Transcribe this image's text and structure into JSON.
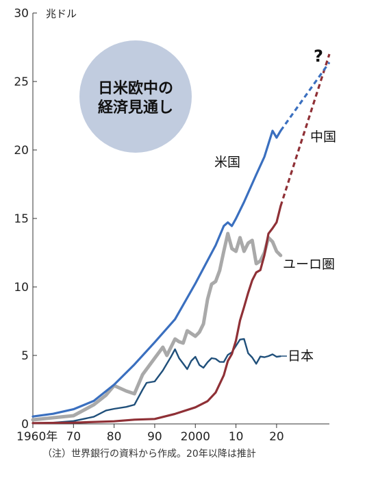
{
  "chart_data": {
    "type": "line",
    "title": "日米欧中の経済見通し",
    "y_unit": "兆ドル",
    "note": "（注）世界銀行の資料から作成。20年以降は推計",
    "xlim": [
      1960,
      2033
    ],
    "ylim": [
      0,
      30
    ],
    "x_ticks": [
      {
        "value": 1960,
        "label": "1960年"
      },
      {
        "value": 1970,
        "label": "70"
      },
      {
        "value": 1980,
        "label": "80"
      },
      {
        "value": 1990,
        "label": "90"
      },
      {
        "value": 2000,
        "label": "2000"
      },
      {
        "value": 2010,
        "label": "10"
      },
      {
        "value": 2020,
        "label": "20"
      }
    ],
    "y_ticks": [
      0,
      5,
      10,
      15,
      20,
      25,
      30
    ],
    "projection_marker": "?",
    "series": [
      {
        "name": "米国",
        "color": "#3a6fbf",
        "points": [
          [
            1960,
            0.54
          ],
          [
            1965,
            0.74
          ],
          [
            1970,
            1.07
          ],
          [
            1975,
            1.68
          ],
          [
            1980,
            2.86
          ],
          [
            1985,
            4.34
          ],
          [
            1990,
            5.96
          ],
          [
            1995,
            7.64
          ],
          [
            2000,
            10.25
          ],
          [
            2005,
            13.04
          ],
          [
            2007,
            14.45
          ],
          [
            2008,
            14.71
          ],
          [
            2009,
            14.45
          ],
          [
            2010,
            14.99
          ],
          [
            2012,
            16.2
          ],
          [
            2015,
            18.2
          ],
          [
            2017,
            19.5
          ],
          [
            2019,
            21.4
          ],
          [
            2020,
            20.9
          ],
          [
            2021,
            21.4
          ]
        ],
        "projection": [
          [
            2021,
            21.4
          ],
          [
            2033,
            26.4
          ]
        ]
      },
      {
        "name": "中国",
        "color": "#8f3036",
        "points": [
          [
            1960,
            0.06
          ],
          [
            1970,
            0.09
          ],
          [
            1980,
            0.19
          ],
          [
            1985,
            0.31
          ],
          [
            1990,
            0.36
          ],
          [
            1995,
            0.73
          ],
          [
            2000,
            1.21
          ],
          [
            2003,
            1.66
          ],
          [
            2005,
            2.29
          ],
          [
            2007,
            3.55
          ],
          [
            2008,
            4.59
          ],
          [
            2009,
            5.1
          ],
          [
            2010,
            6.09
          ],
          [
            2011,
            7.55
          ],
          [
            2012,
            8.53
          ],
          [
            2013,
            9.57
          ],
          [
            2014,
            10.48
          ],
          [
            2015,
            11.06
          ],
          [
            2016,
            11.23
          ],
          [
            2017,
            12.31
          ],
          [
            2018,
            13.89
          ],
          [
            2019,
            14.28
          ],
          [
            2020,
            14.72
          ],
          [
            2021,
            15.9
          ]
        ],
        "projection": [
          [
            2021,
            15.9
          ],
          [
            2033,
            27.0
          ]
        ]
      },
      {
        "name": "ユーロ圏",
        "color": "#a9a9a9",
        "points": [
          [
            1960,
            0.3
          ],
          [
            1970,
            0.6
          ],
          [
            1975,
            1.4
          ],
          [
            1978,
            2.1
          ],
          [
            1980,
            2.8
          ],
          [
            1983,
            2.4
          ],
          [
            1985,
            2.2
          ],
          [
            1987,
            3.6
          ],
          [
            1990,
            4.8
          ],
          [
            1992,
            5.6
          ],
          [
            1993,
            5.0
          ],
          [
            1995,
            6.2
          ],
          [
            1996,
            6.0
          ],
          [
            1997,
            5.9
          ],
          [
            1998,
            6.8
          ],
          [
            1999,
            6.6
          ],
          [
            2000,
            6.4
          ],
          [
            2001,
            6.7
          ],
          [
            2002,
            7.3
          ],
          [
            2003,
            9.1
          ],
          [
            2004,
            10.2
          ],
          [
            2005,
            10.4
          ],
          [
            2006,
            11.2
          ],
          [
            2007,
            12.6
          ],
          [
            2008,
            13.9
          ],
          [
            2009,
            12.8
          ],
          [
            2010,
            12.6
          ],
          [
            2011,
            13.6
          ],
          [
            2012,
            12.6
          ],
          [
            2013,
            13.2
          ],
          [
            2014,
            13.4
          ],
          [
            2015,
            11.7
          ],
          [
            2016,
            11.9
          ],
          [
            2017,
            12.5
          ],
          [
            2018,
            13.6
          ],
          [
            2019,
            13.3
          ],
          [
            2020,
            12.6
          ],
          [
            2021,
            12.3
          ]
        ]
      },
      {
        "name": "日本",
        "color": "#1f4f7a",
        "points": [
          [
            1960,
            0.04
          ],
          [
            1965,
            0.09
          ],
          [
            1970,
            0.21
          ],
          [
            1975,
            0.52
          ],
          [
            1978,
            0.98
          ],
          [
            1980,
            1.1
          ],
          [
            1983,
            1.24
          ],
          [
            1985,
            1.4
          ],
          [
            1987,
            2.5
          ],
          [
            1988,
            3.0
          ],
          [
            1990,
            3.1
          ],
          [
            1992,
            3.9
          ],
          [
            1993,
            4.4
          ],
          [
            1994,
            4.9
          ],
          [
            1995,
            5.45
          ],
          [
            1996,
            4.8
          ],
          [
            1997,
            4.4
          ],
          [
            1998,
            4.0
          ],
          [
            1999,
            4.6
          ],
          [
            2000,
            4.9
          ],
          [
            2001,
            4.3
          ],
          [
            2002,
            4.1
          ],
          [
            2003,
            4.5
          ],
          [
            2004,
            4.8
          ],
          [
            2005,
            4.75
          ],
          [
            2006,
            4.53
          ],
          [
            2007,
            4.52
          ],
          [
            2008,
            5.04
          ],
          [
            2009,
            5.23
          ],
          [
            2010,
            5.7
          ],
          [
            2011,
            6.16
          ],
          [
            2012,
            6.2
          ],
          [
            2013,
            5.16
          ],
          [
            2014,
            4.85
          ],
          [
            2015,
            4.39
          ],
          [
            2016,
            4.92
          ],
          [
            2017,
            4.87
          ],
          [
            2018,
            4.95
          ],
          [
            2019,
            5.08
          ],
          [
            2020,
            4.9
          ],
          [
            2021,
            4.94
          ]
        ]
      }
    ]
  }
}
